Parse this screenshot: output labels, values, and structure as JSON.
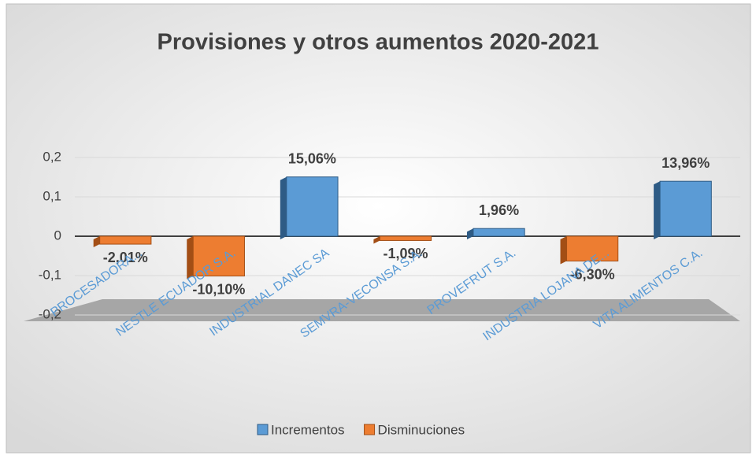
{
  "chart_data": {
    "type": "bar3d",
    "title": "Provisiones y otros aumentos 2020-2021",
    "categories": [
      "PROCESADORA...",
      "NESTLE ECUADOR S.A.",
      "INDUSTRIAL DANEC SA",
      "SEMVRA-VECONSA S.A.",
      "PROVEFRUT S.A.",
      "INDUSTRIA LOJANA DE...",
      "VITA ALIMENTOS C.A."
    ],
    "series": [
      {
        "name": "Incrementos",
        "color": "#5b9bd5",
        "values": [
          null,
          null,
          0.1506,
          null,
          0.0196,
          null,
          0.1396
        ],
        "value_labels": [
          null,
          null,
          "15,06%",
          null,
          "1,96%",
          null,
          "13,96%"
        ]
      },
      {
        "name": "Disminuciones",
        "color": "#ed7d31",
        "values": [
          -0.0201,
          -0.101,
          null,
          -0.0109,
          null,
          -0.063,
          null
        ],
        "value_labels": [
          "-2,01%",
          "-10,10%",
          null,
          "-1,09%",
          null,
          "-6,30%",
          null
        ]
      }
    ],
    "ylim": [
      -0.2,
      0.2
    ],
    "yticks": [
      {
        "value": -0.2,
        "label": "-0,2"
      },
      {
        "value": -0.1,
        "label": "-0,1"
      },
      0,
      {
        "value": 0.1,
        "label": "0,1"
      },
      {
        "value": 0.2,
        "label": "0,2"
      }
    ],
    "grid": true,
    "legend": "bottom"
  }
}
